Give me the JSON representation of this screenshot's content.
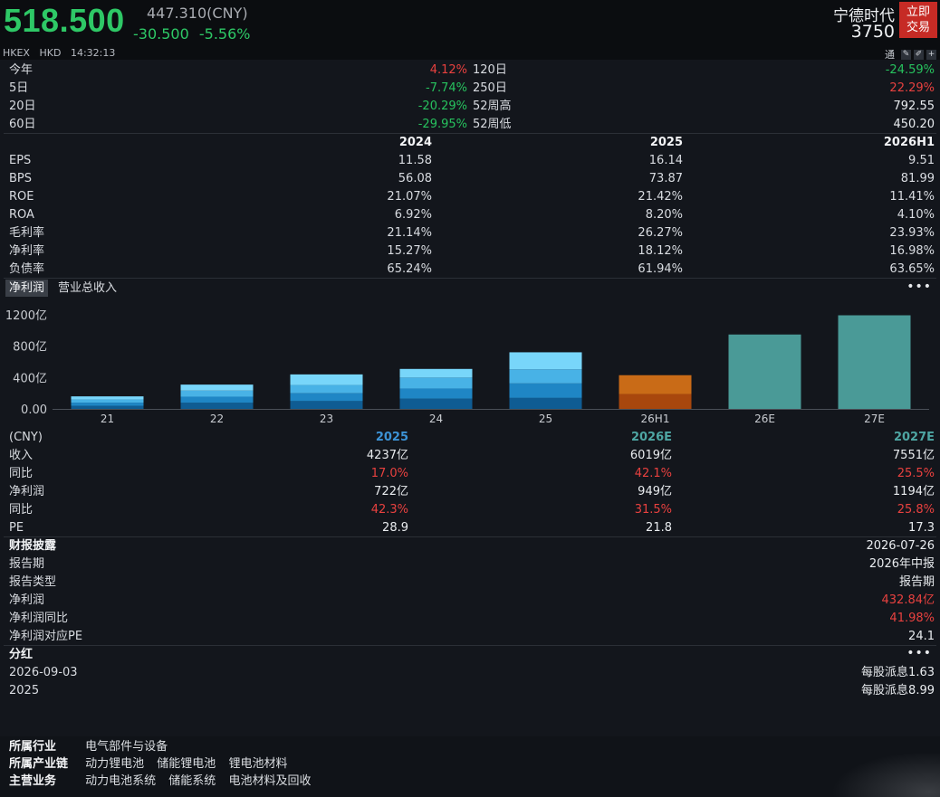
{
  "header": {
    "price": "518.500",
    "cny_price": "447.310(CNY)",
    "change": "-30.500",
    "change_pct": "-5.56%",
    "exchange": "HKEX",
    "currency": "HKD",
    "time": "14:32:13",
    "stock_name": "宁德时代",
    "stock_code": "3750",
    "trade_button": [
      "立即",
      "交易"
    ],
    "tool_label": "通"
  },
  "perf": [
    {
      "l1": "今年",
      "v1": "4.12%",
      "l2": "120日",
      "v2": "-24.59%"
    },
    {
      "l1": "5日",
      "v1": "-7.74%",
      "l2": "250日",
      "v2": "22.29%"
    },
    {
      "l1": "20日",
      "v1": "-20.29%",
      "l2": "52周高",
      "v2": "792.55"
    },
    {
      "l1": "60日",
      "v1": "-29.95%",
      "l2": "52周低",
      "v2": "450.20"
    }
  ],
  "fin": {
    "headers": [
      "2024",
      "2025",
      "2026H1"
    ],
    "rows": [
      {
        "label": "EPS",
        "values": [
          "11.58",
          "16.14",
          "9.51"
        ]
      },
      {
        "label": "BPS",
        "values": [
          "56.08",
          "73.87",
          "81.99"
        ]
      },
      {
        "label": "ROE",
        "values": [
          "21.07%",
          "21.42%",
          "11.41%"
        ]
      },
      {
        "label": "ROA",
        "values": [
          "6.92%",
          "8.20%",
          "4.10%"
        ]
      },
      {
        "label": "毛利率",
        "values": [
          "21.14%",
          "26.27%",
          "23.93%"
        ]
      },
      {
        "label": "净利率",
        "values": [
          "15.27%",
          "18.12%",
          "16.98%"
        ]
      },
      {
        "label": "负债率",
        "values": [
          "65.24%",
          "61.94%",
          "63.65%"
        ]
      }
    ]
  },
  "tabs": [
    "净利润",
    "营业总收入"
  ],
  "more": "•••",
  "chart_data": {
    "type": "bar",
    "categories": [
      "21",
      "22",
      "23",
      "24",
      "25",
      "26H1",
      "26E",
      "27E"
    ],
    "values": [
      160,
      310,
      440,
      510,
      722,
      430,
      949,
      1194
    ],
    "segments": [
      [
        40,
        40,
        40,
        40
      ],
      [
        78,
        78,
        77,
        77
      ],
      [
        100,
        100,
        105,
        135
      ],
      [
        130,
        130,
        140,
        110
      ],
      [
        140,
        185,
        180,
        217
      ],
      [
        190,
        240
      ]
    ],
    "segment_colors": [
      "#0f5c93",
      "#1f86c5",
      "#48b2e6",
      "#78d6fa"
    ],
    "h1_colors": [
      "#a8470d",
      "#c96b17"
    ],
    "estimate_color": "#4a9a97",
    "yticks": [
      "0.00",
      "400亿",
      "800亿",
      "1200亿"
    ],
    "ylim": [
      0,
      1200
    ]
  },
  "forecast": {
    "unit": "(CNY)",
    "headers": [
      "2025",
      "2026E",
      "2027E"
    ],
    "rows": [
      {
        "label": "收入",
        "values": [
          "4237亿",
          "6019亿",
          "7551亿"
        ],
        "color": "white"
      },
      {
        "label": "同比",
        "values": [
          "17.0%",
          "42.1%",
          "25.5%"
        ],
        "color": "up"
      },
      {
        "label": "净利润",
        "values": [
          "722亿",
          "949亿",
          "1194亿"
        ],
        "color": "white"
      },
      {
        "label": "同比",
        "values": [
          "42.3%",
          "31.5%",
          "25.8%"
        ],
        "color": "up"
      },
      {
        "label": "PE",
        "values": [
          "28.9",
          "21.8",
          "17.3"
        ],
        "color": "white"
      }
    ]
  },
  "disclosure": {
    "title": "财报披露",
    "date": "2026-07-26",
    "rows": [
      {
        "label": "报告期",
        "value": "2026年中报",
        "color": "white"
      },
      {
        "label": "报告类型",
        "value": "报告期",
        "color": "white"
      },
      {
        "label": "净利润",
        "value": "432.84亿",
        "color": "up"
      },
      {
        "label": "净利润同比",
        "value": "41.98%",
        "color": "up"
      },
      {
        "label": "净利润对应PE",
        "value": "24.1",
        "color": "white"
      }
    ]
  },
  "dividend": {
    "title": "分红",
    "rows": [
      {
        "label": "2026-09-03",
        "value": "每股派息1.63"
      },
      {
        "label": "2025",
        "value": "每股派息8.99"
      }
    ]
  },
  "industry": {
    "rows": [
      {
        "key": "所属行业",
        "items": [
          "电气部件与设备"
        ]
      },
      {
        "key": "所属产业链",
        "items": [
          "动力锂电池",
          "储能锂电池",
          "锂电池材料"
        ]
      },
      {
        "key": "主营业务",
        "items": [
          "动力电池系统",
          "储能系统",
          "电池材料及回收"
        ]
      }
    ]
  }
}
